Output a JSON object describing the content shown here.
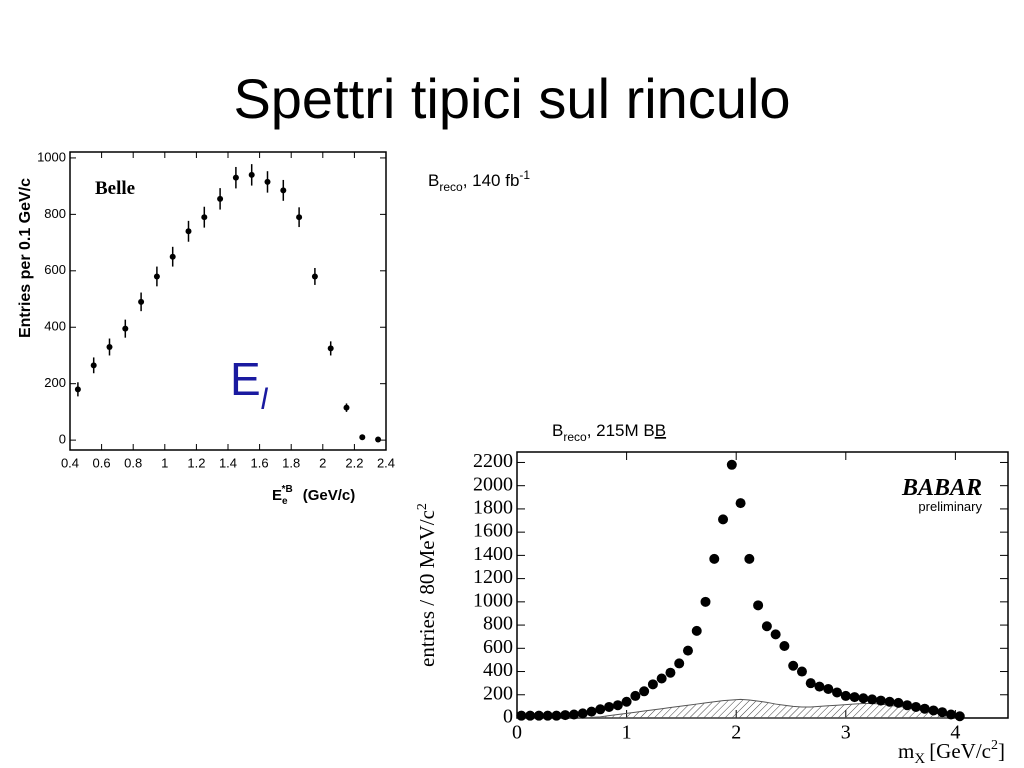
{
  "slide": {
    "title": "Spettri tipici sul rinculo",
    "note1": {
      "b": "B",
      "sub": "reco",
      "text": ", 140 fb",
      "sup": "-1"
    },
    "note2": {
      "b": "B",
      "sub": "reco",
      "text": ", 215M B",
      "bbar": "B"
    }
  },
  "chart_data": [
    {
      "type": "scatter",
      "title": "Belle",
      "annotation": {
        "text": "E",
        "sub": "l"
      },
      "ylabel": "Entries per 0.1 GeV/c",
      "xlabel": {
        "text": "E",
        "sub": "e",
        "sup": "*B",
        "unit": "(GeV/c)"
      },
      "x": [
        0.45,
        0.55,
        0.65,
        0.75,
        0.85,
        0.95,
        1.05,
        1.15,
        1.25,
        1.35,
        1.45,
        1.55,
        1.65,
        1.75,
        1.85,
        1.95,
        2.05,
        2.15,
        2.25,
        2.35
      ],
      "values": [
        180,
        265,
        330,
        395,
        490,
        580,
        650,
        740,
        790,
        855,
        930,
        940,
        915,
        885,
        790,
        580,
        325,
        115,
        10,
        2
      ],
      "errors": [
        25,
        28,
        30,
        32,
        33,
        35,
        35,
        37,
        37,
        38,
        38,
        38,
        38,
        37,
        35,
        30,
        25,
        15,
        5,
        3
      ],
      "color": "#000000",
      "xlim": [
        0.4,
        2.4
      ],
      "xticks": [
        0.4,
        0.6,
        0.8,
        1,
        1.2,
        1.4,
        1.6,
        1.8,
        2,
        2.2,
        2.4
      ],
      "ylim": [
        -35,
        1021
      ],
      "yticks": [
        0,
        200,
        400,
        600,
        800,
        1000
      ]
    },
    {
      "type": "scatter",
      "title": "BABAR",
      "subtitle": "preliminary",
      "ylabel": {
        "text": "entries / 80 MeV/c",
        "sup": "2"
      },
      "xlabel": {
        "text": "m",
        "sub": "X",
        "unit": "[GeV/c",
        "sup": "2",
        "end": "]"
      },
      "x": [
        0.04,
        0.12,
        0.2,
        0.28,
        0.36,
        0.44,
        0.52,
        0.6,
        0.68,
        0.76,
        0.84,
        0.92,
        1.0,
        1.08,
        1.16,
        1.24,
        1.32,
        1.4,
        1.48,
        1.56,
        1.64,
        1.72,
        1.8,
        1.88,
        1.96,
        2.04,
        2.12,
        2.2,
        2.28,
        2.36,
        2.44,
        2.52,
        2.6,
        2.68,
        2.76,
        2.84,
        2.92,
        3.0,
        3.08,
        3.16,
        3.24,
        3.32,
        3.4,
        3.48,
        3.56,
        3.64,
        3.72,
        3.8,
        3.88,
        3.96,
        4.04
      ],
      "series": [
        {
          "kind": "points",
          "color": "#000000",
          "values": [
            20,
            20,
            20,
            20,
            20,
            25,
            30,
            40,
            55,
            75,
            95,
            110,
            140,
            190,
            230,
            290,
            340,
            390,
            470,
            580,
            750,
            1000,
            1370,
            1710,
            2180,
            1850,
            1370,
            970,
            790,
            720,
            620,
            450,
            400,
            300,
            270,
            250,
            220,
            190,
            180,
            170,
            160,
            150,
            140,
            130,
            110,
            95,
            80,
            65,
            50,
            30,
            15
          ]
        },
        {
          "kind": "hatched-area",
          "color": "#555555",
          "values": [
            0,
            0,
            0,
            0,
            0,
            0,
            0,
            0,
            5,
            10,
            20,
            30,
            40,
            50,
            60,
            70,
            80,
            90,
            100,
            110,
            120,
            130,
            140,
            150,
            155,
            160,
            155,
            145,
            135,
            120,
            110,
            100,
            95,
            95,
            100,
            105,
            110,
            115,
            120,
            125,
            125,
            120,
            110,
            100,
            90,
            75,
            60,
            45,
            30,
            15,
            0
          ]
        }
      ],
      "xlim": [
        0,
        4.48
      ],
      "xticks": [
        0,
        1,
        2,
        3,
        4
      ],
      "ylim": [
        0,
        2290
      ],
      "yticks": [
        0,
        200,
        400,
        600,
        800,
        1000,
        1200,
        1400,
        1600,
        1800,
        2000,
        2200
      ]
    }
  ]
}
